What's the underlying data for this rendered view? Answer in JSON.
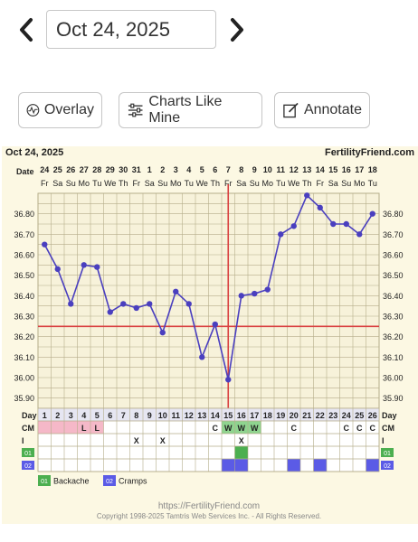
{
  "date_selector": {
    "value": "Oct 24, 2025"
  },
  "buttons": {
    "overlay": "Overlay",
    "charts_like_mine": "Charts Like Mine",
    "annotate": "Annotate"
  },
  "chart_header": {
    "date": "Oct 24, 2025",
    "site": "FertilityFriend.com"
  },
  "chart_data": {
    "type": "line",
    "row_labels": {
      "date": "Date",
      "day": "Day",
      "cm": "CM",
      "intercourse": "I",
      "symptom1": "01",
      "symptom2": "02"
    },
    "dates": [
      "24",
      "25",
      "26",
      "27",
      "28",
      "29",
      "30",
      "31",
      "1",
      "2",
      "3",
      "4",
      "5",
      "6",
      "7",
      "8",
      "9",
      "10",
      "11",
      "12",
      "13",
      "14",
      "15",
      "16",
      "17",
      "18"
    ],
    "weekdays": [
      "Fr",
      "Sa",
      "Su",
      "Mo",
      "Tu",
      "We",
      "Th",
      "Fr",
      "Sa",
      "Su",
      "Mo",
      "Tu",
      "We",
      "Th",
      "Fr",
      "Sa",
      "Su",
      "Mo",
      "Tu",
      "We",
      "Th",
      "Fr",
      "Sa",
      "Su",
      "Mo",
      "Tu"
    ],
    "days": [
      "1",
      "2",
      "3",
      "4",
      "5",
      "6",
      "7",
      "8",
      "9",
      "10",
      "11",
      "12",
      "13",
      "14",
      "15",
      "16",
      "17",
      "18",
      "19",
      "20",
      "21",
      "22",
      "23",
      "24",
      "25",
      "26"
    ],
    "y_ticks": [
      "36.80",
      "36.70",
      "36.60",
      "36.50",
      "36.40",
      "36.30",
      "36.20",
      "36.10",
      "36.00",
      "35.90"
    ],
    "ylim": [
      35.85,
      36.9
    ],
    "temperatures": [
      36.65,
      36.53,
      36.36,
      36.55,
      36.54,
      36.32,
      36.36,
      36.34,
      36.36,
      36.22,
      36.42,
      36.36,
      36.1,
      36.26,
      35.99,
      36.4,
      36.41,
      36.43,
      36.7,
      36.74,
      36.89,
      36.83,
      36.75,
      36.75,
      36.7,
      36.8
    ],
    "coverline": 36.25,
    "ovulation_day": 15,
    "cervical_mucus": [
      "",
      "",
      "",
      "L",
      "L",
      "",
      "",
      "",
      "",
      "",
      "",
      "",
      "",
      "C",
      "W",
      "W",
      "W",
      "",
      "",
      "C",
      "",
      "",
      "",
      "C",
      "C",
      "C"
    ],
    "intercourse": [
      "",
      "",
      "",
      "",
      "",
      "",
      "",
      "X",
      "",
      "X",
      "",
      "",
      "",
      "",
      "",
      "X",
      "",
      "",
      "",
      "",
      "",
      "",
      "",
      "",
      "",
      ""
    ],
    "symptom1_days": [
      16
    ],
    "symptom2_days": [
      15,
      16,
      20,
      22,
      26
    ],
    "legend": [
      {
        "code": "01",
        "label": "Backache",
        "color": "#4caf50"
      },
      {
        "code": "02",
        "label": "Cramps",
        "color": "#5b5be6"
      }
    ],
    "colors": {
      "line": "#4a3fbf",
      "coverline": "#d94040",
      "grid": "#b5ad8a",
      "period": "#f5b8c8",
      "cm_fertile": "#8fd48f"
    }
  },
  "footer": {
    "url": "https://FertilityFriend.com",
    "copyright": "Copyright 1998-2025 Tamtris Web Services Inc. - All Rights Reserved."
  }
}
